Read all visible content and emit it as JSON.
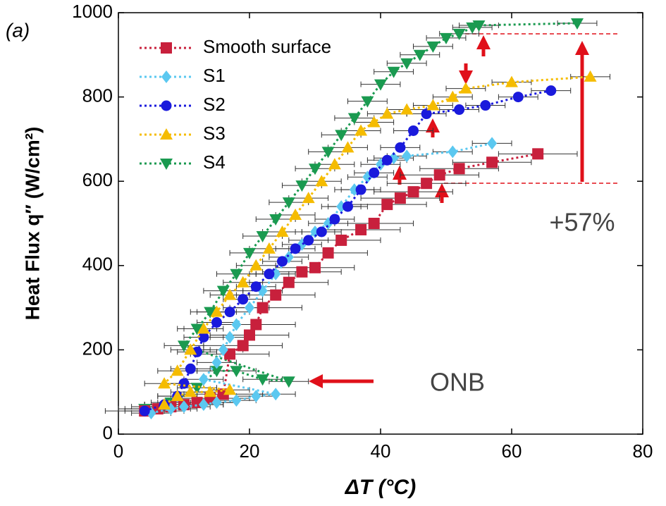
{
  "chart_data": {
    "type": "scatter",
    "panel_label": "(a)",
    "xlabel": "ΔT (°C)",
    "ylabel": "Heat Flux q″ (W/cm²)",
    "xlim": [
      0,
      80
    ],
    "xticks": [
      0,
      20,
      40,
      60,
      80
    ],
    "ylim": [
      0,
      1000
    ],
    "yticks": [
      0,
      200,
      400,
      600,
      800,
      1000
    ],
    "line_style": "dotted",
    "legend": "upper left",
    "annotations": [
      "ONB",
      "+57%"
    ],
    "series": [
      {
        "name": "Smooth surface",
        "color": "#c8203c",
        "marker": "square",
        "xerr": 6,
        "x": [
          4,
          6,
          8,
          10,
          12,
          14,
          16,
          17,
          19,
          20,
          21,
          22,
          24,
          26,
          28,
          30,
          32,
          34,
          37,
          39,
          41,
          43,
          45,
          47,
          49,
          52,
          57,
          64
        ],
        "values": [
          55,
          60,
          65,
          70,
          75,
          85,
          95,
          190,
          210,
          235,
          260,
          300,
          330,
          360,
          385,
          395,
          430,
          460,
          485,
          500,
          545,
          560,
          575,
          595,
          615,
          630,
          645,
          665
        ]
      },
      {
        "name": "S1",
        "color": "#5bc8f0",
        "marker": "diamond",
        "xerr": 3,
        "x": [
          5,
          8,
          10,
          13,
          15,
          18,
          21,
          24,
          13,
          15,
          16,
          17,
          18,
          20,
          22,
          24,
          26,
          28,
          30,
          32,
          34,
          36,
          38,
          40,
          42,
          44,
          51,
          57
        ],
        "values": [
          50,
          60,
          65,
          70,
          75,
          80,
          90,
          95,
          130,
          170,
          200,
          230,
          260,
          300,
          340,
          380,
          420,
          450,
          480,
          500,
          540,
          580,
          610,
          640,
          655,
          660,
          670,
          690
        ]
      },
      {
        "name": "S2",
        "color": "#1a1adc",
        "marker": "circle",
        "xerr": 3,
        "x": [
          4,
          7,
          9,
          10,
          11,
          12,
          13,
          15,
          17,
          19,
          21,
          23,
          25,
          27,
          29,
          31,
          33,
          35,
          37,
          39,
          41,
          43,
          45,
          47,
          52,
          56,
          61,
          66
        ],
        "values": [
          55,
          70,
          90,
          120,
          155,
          195,
          230,
          265,
          290,
          320,
          350,
          380,
          410,
          440,
          460,
          480,
          510,
          540,
          580,
          620,
          650,
          680,
          720,
          760,
          770,
          780,
          800,
          815
        ]
      },
      {
        "name": "S3",
        "color": "#f5bc00",
        "marker": "triangle",
        "xerr": 3,
        "x": [
          7,
          9,
          11,
          14,
          17,
          7,
          9,
          11,
          13,
          15,
          17,
          19,
          21,
          23,
          25,
          27,
          29,
          31,
          33,
          35,
          37,
          39,
          41,
          44,
          48,
          51,
          53,
          60,
          72
        ],
        "values": [
          70,
          90,
          100,
          100,
          105,
          120,
          150,
          200,
          250,
          290,
          330,
          360,
          400,
          440,
          480,
          520,
          560,
          600,
          640,
          680,
          720,
          740,
          760,
          770,
          780,
          800,
          820,
          835,
          848
        ]
      },
      {
        "name": "S4",
        "color": "#1a9a50",
        "marker": "triangle-down",
        "xerr": 3,
        "x": [
          4,
          8,
          12,
          15,
          18,
          22,
          26,
          10,
          12,
          14,
          16,
          18,
          20,
          22,
          24,
          26,
          28,
          30,
          32,
          34,
          36,
          38,
          40,
          42,
          44,
          46,
          48,
          50,
          52,
          54,
          55,
          70
        ],
        "values": [
          60,
          75,
          110,
          150,
          150,
          130,
          125,
          210,
          250,
          290,
          340,
          380,
          430,
          470,
          510,
          550,
          590,
          630,
          670,
          710,
          750,
          790,
          830,
          860,
          880,
          900,
          920,
          940,
          950,
          965,
          970,
          975
        ]
      }
    ]
  }
}
